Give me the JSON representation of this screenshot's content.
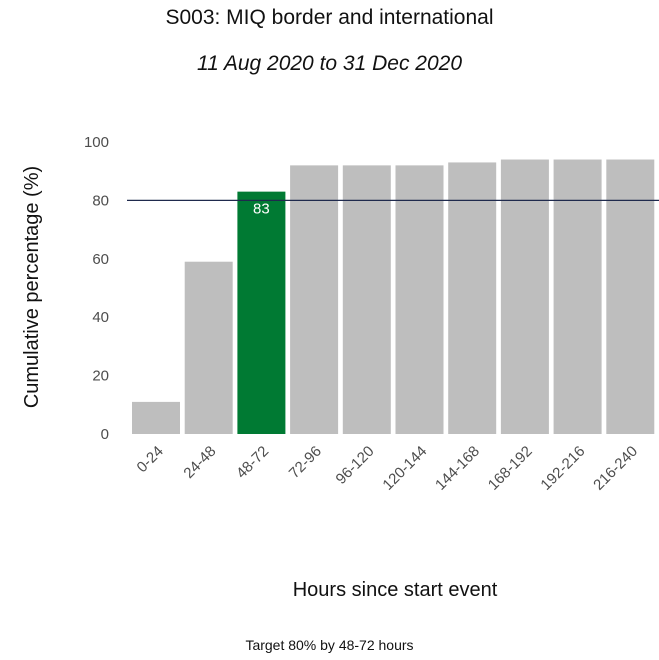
{
  "title": "S003: MIQ border and international",
  "subtitle": "11 Aug 2020 to 31 Dec 2020",
  "caption": "Target 80% by 48-72 hours",
  "colors": {
    "bar_default": "#bebebe",
    "bar_highlight": "#007a33",
    "target_line": "#1f2a4d"
  },
  "chart_data": {
    "type": "bar",
    "xlabel": "Hours since start event",
    "ylabel": "Cumulative percentage (%)",
    "ylim": [
      0,
      100
    ],
    "yticks": [
      0,
      20,
      40,
      60,
      80,
      100
    ],
    "grid": false,
    "categories": [
      "0-24",
      "24-48",
      "48-72",
      "72-96",
      "96-120",
      "120-144",
      "144-168",
      "168-192",
      "192-216",
      "216-240"
    ],
    "values": [
      11,
      59,
      83,
      92,
      92,
      92,
      93,
      94,
      94,
      94
    ],
    "highlight_category": "48-72",
    "highlight_label": "83",
    "target_line": 80
  }
}
